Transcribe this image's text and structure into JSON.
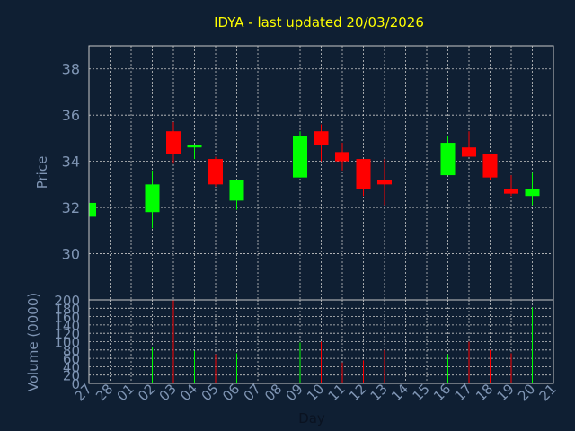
{
  "chart_data": {
    "type": "candlestick",
    "title": "IDYA - last updated 20/03/2026",
    "price_panel": {
      "ylabel": "Price",
      "ylim": [
        28,
        39
      ],
      "yticks": [
        30,
        32,
        34,
        36,
        38
      ],
      "grid": true
    },
    "volume_panel": {
      "ylabel": "Volume (0000)",
      "ylim": [
        0,
        200
      ],
      "yticks": [
        0,
        20,
        40,
        60,
        80,
        100,
        120,
        140,
        160,
        180,
        200
      ],
      "grid": true
    },
    "xlabel": "Day",
    "x_ticks": [
      "27",
      "28",
      "01",
      "02",
      "03",
      "04",
      "05",
      "06",
      "07",
      "08",
      "09",
      "10",
      "11",
      "12",
      "13",
      "14",
      "15",
      "16",
      "17",
      "18",
      "19",
      "20",
      "21"
    ],
    "candles": [
      {
        "day": "27",
        "open": 31.6,
        "high": 32.2,
        "low": 31.6,
        "close": 32.2,
        "volume": 0
      },
      {
        "day": "02",
        "open": 31.8,
        "high": 33.6,
        "low": 31.1,
        "close": 33.0,
        "volume": 88
      },
      {
        "day": "03",
        "open": 35.3,
        "high": 35.7,
        "low": 33.9,
        "close": 34.3,
        "volume": 200
      },
      {
        "day": "04",
        "open": 34.6,
        "high": 34.7,
        "low": 34.1,
        "close": 34.7,
        "volume": 78
      },
      {
        "day": "05",
        "open": 34.1,
        "high": 34.2,
        "low": 32.9,
        "close": 33.0,
        "volume": 70
      },
      {
        "day": "06",
        "open": 32.3,
        "high": 33.2,
        "low": 31.9,
        "close": 33.2,
        "volume": 72
      },
      {
        "day": "09",
        "open": 33.3,
        "high": 35.3,
        "low": 33.3,
        "close": 35.1,
        "volume": 98
      },
      {
        "day": "10",
        "open": 35.3,
        "high": 35.6,
        "low": 34.0,
        "close": 34.7,
        "volume": 100
      },
      {
        "day": "11",
        "open": 34.4,
        "high": 34.8,
        "low": 33.6,
        "close": 34.0,
        "volume": 50
      },
      {
        "day": "12",
        "open": 34.1,
        "high": 34.1,
        "low": 32.5,
        "close": 32.8,
        "volume": 55
      },
      {
        "day": "13",
        "open": 33.2,
        "high": 34.1,
        "low": 32.1,
        "close": 33.0,
        "volume": 80
      },
      {
        "day": "16",
        "open": 33.4,
        "high": 35.1,
        "low": 33.4,
        "close": 34.8,
        "volume": 70
      },
      {
        "day": "17",
        "open": 34.6,
        "high": 35.3,
        "low": 34.2,
        "close": 34.2,
        "volume": 100
      },
      {
        "day": "18",
        "open": 34.3,
        "high": 34.3,
        "low": 33.2,
        "close": 33.3,
        "volume": 80
      },
      {
        "day": "19",
        "open": 32.8,
        "high": 33.4,
        "low": 32.5,
        "close": 32.6,
        "volume": 72
      },
      {
        "day": "20",
        "open": 32.5,
        "high": 33.5,
        "low": 32.1,
        "close": 32.8,
        "volume": 182
      }
    ],
    "colors": {
      "background": "#0f1f33",
      "up": "#00ff00",
      "down": "#ff0000",
      "title": "#ffff00",
      "axis_text": "#7f95b4",
      "frame": "#c8c8c8",
      "grid": "#c8c8c8"
    }
  }
}
